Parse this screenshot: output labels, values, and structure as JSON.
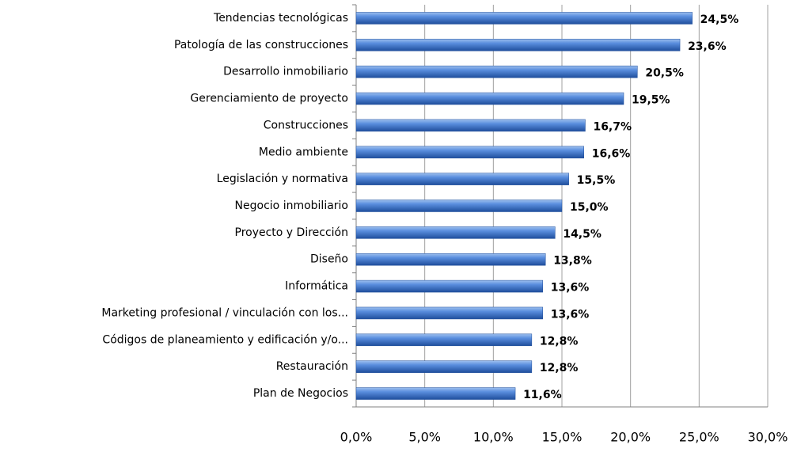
{
  "chart_data": {
    "type": "bar",
    "orientation": "horizontal",
    "categories": [
      "Tendencias tecnológicas",
      "Patología de las construcciones",
      "Desarrollo inmobiliario",
      "Gerenciamiento de proyecto",
      "Construcciones",
      "Medio ambiente",
      "Legislación y normativa",
      "Negocio inmobiliario",
      "Proyecto y Dirección",
      "Diseño",
      "Informática",
      "Marketing profesional / vinculación con los...",
      "Códigos de planeamiento y edificación y/o...",
      "Restauración",
      "Plan de Negocios"
    ],
    "values": [
      24.5,
      23.6,
      20.5,
      19.5,
      16.7,
      16.6,
      15.5,
      15.0,
      14.5,
      13.8,
      13.6,
      13.6,
      12.8,
      12.8,
      11.6
    ],
    "value_labels": [
      "24,5%",
      "23,6%",
      "20,5%",
      "19,5%",
      "16,7%",
      "16,6%",
      "15,5%",
      "15,0%",
      "14,5%",
      "13,8%",
      "13,6%",
      "13,6%",
      "12,8%",
      "12,8%",
      "11,6%"
    ],
    "color": "#3a6fc4",
    "xlim": [
      0,
      30
    ],
    "xticks": [
      {
        "value": 0,
        "label": "0,0%"
      },
      {
        "value": 5,
        "label": "5,0%"
      },
      {
        "value": 10,
        "label": "10,0%"
      },
      {
        "value": 15,
        "label": "15,0%"
      },
      {
        "value": 20,
        "label": "20,0%"
      },
      {
        "value": 25,
        "label": "25,0%"
      },
      {
        "value": 30,
        "label": "30,0%"
      }
    ],
    "grid": true
  }
}
